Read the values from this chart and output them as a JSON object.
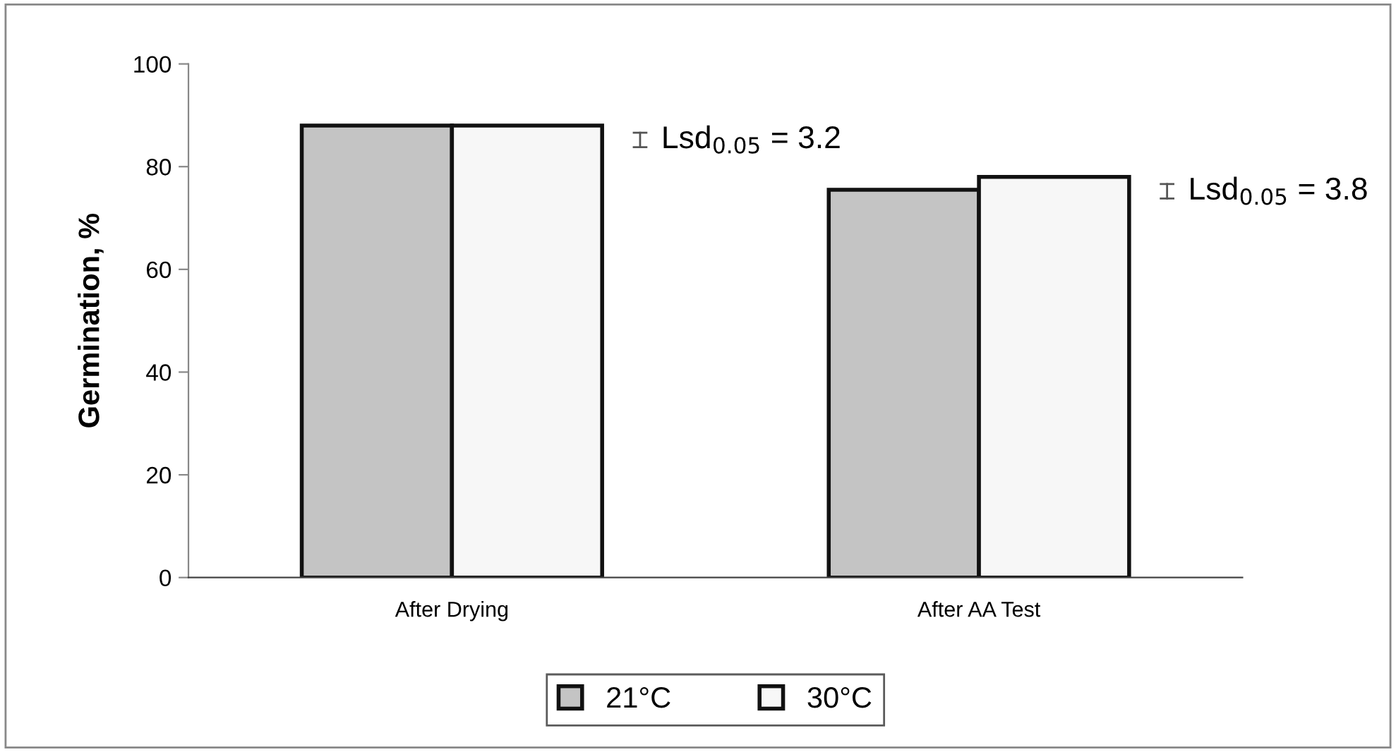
{
  "chart_data": {
    "type": "bar",
    "ylabel": "Germination, %",
    "categories": [
      "After Drying",
      "After AA Test"
    ],
    "series": [
      {
        "name": "21°C",
        "color": "#c4c4c4",
        "values": [
          88,
          75.5
        ]
      },
      {
        "name": "30°C",
        "color": "#f7f7f7",
        "values": [
          88,
          78
        ]
      }
    ],
    "ylim": [
      0,
      100
    ],
    "yticks": [
      0,
      20,
      40,
      60,
      80,
      100
    ],
    "grid": false,
    "legend": "bottom",
    "annotations": [
      "Lsd$_{0.05}$ = 3.2",
      "Lsd$_{0.05}$ = 3.8"
    ]
  }
}
